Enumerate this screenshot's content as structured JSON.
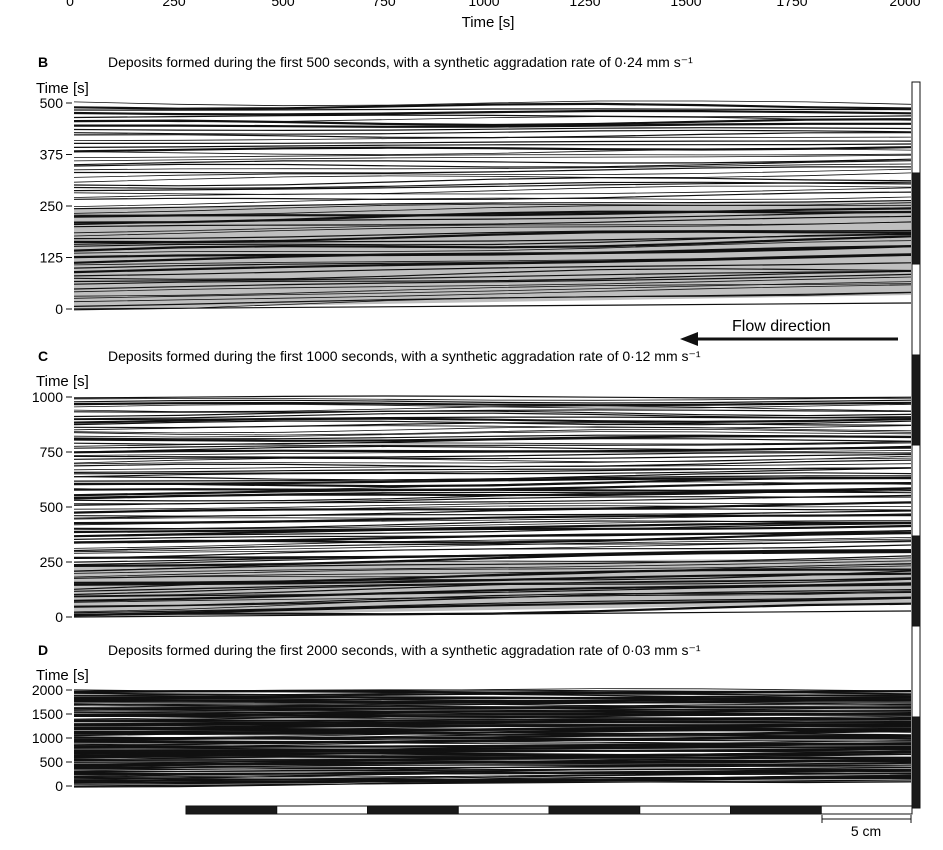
{
  "top_axis": {
    "xlabel": "Time [s]",
    "tick_labels": [
      "0",
      "250",
      "500",
      "750",
      "1000",
      "1250",
      "1500",
      "1750",
      "2000"
    ]
  },
  "flow_label": "Flow direction",
  "scale_bar_label": "5 cm",
  "panels": [
    {
      "letter": "B",
      "caption": "Deposits formed during the first 500 seconds, with a synthetic aggradation rate of 0·24 mm s⁻¹",
      "ylabel": "Time [s]",
      "ymax": 500,
      "ticks": [
        0,
        125,
        250,
        375,
        500
      ],
      "tick_labels": [
        "0",
        "125",
        "250",
        "375",
        "500"
      ],
      "shade_to": 250,
      "n_layers": 62
    },
    {
      "letter": "C",
      "caption": "Deposits formed during the first 1000 seconds, with a synthetic aggradation rate of 0·12 mm s⁻¹",
      "ylabel": "Time [s]",
      "ymax": 1000,
      "ticks": [
        0,
        250,
        500,
        750,
        1000
      ],
      "tick_labels": [
        "0",
        "250",
        "500",
        "750",
        "1000"
      ],
      "shade_to": 250,
      "n_layers": 92
    },
    {
      "letter": "D",
      "caption": "Deposits formed during the first 2000 seconds, with a synthetic aggradation rate of 0·03 mm s⁻¹",
      "ylabel": "Time [s]",
      "ymax": 2000,
      "ticks": [
        0,
        500,
        1000,
        1500,
        2000
      ],
      "tick_labels": [
        "0",
        "500",
        "1000",
        "1500",
        "2000"
      ],
      "shade_to": 0,
      "n_layers": 130
    }
  ],
  "colors": {
    "line": "#111111",
    "shade": "#bfbfbf",
    "bar_dark": "#1a1a1a",
    "bar_light": "#ffffff"
  }
}
